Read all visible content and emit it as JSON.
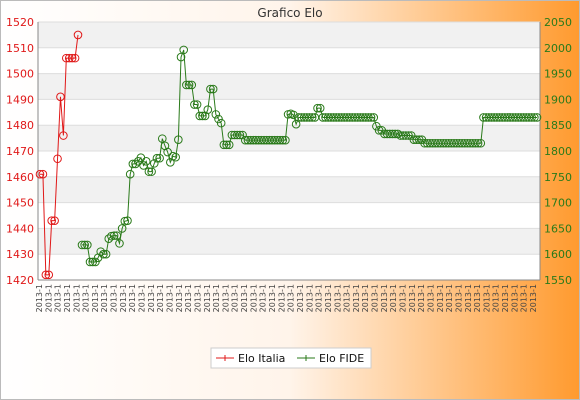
{
  "chart_data": {
    "type": "line",
    "title": "Grafico Elo",
    "colors": {
      "elo_italia": "#e01818",
      "elo_fide": "#2a7a1a"
    },
    "y_left": {
      "ticks": [
        1420,
        1430,
        1440,
        1450,
        1460,
        1470,
        1480,
        1490,
        1500,
        1510,
        1520
      ],
      "range": [
        1420,
        1520
      ]
    },
    "y_right": {
      "ticks": [
        1550,
        1600,
        1650,
        1700,
        1750,
        1800,
        1850,
        1900,
        1950,
        2000,
        2050
      ],
      "range": [
        1550,
        2050
      ]
    },
    "x_tick_label": "2013-1",
    "x_tick_count": 54,
    "legend": {
      "position": "bottom",
      "entries": [
        "Elo Italia",
        "Elo FIDE"
      ]
    },
    "grid": "horizontal",
    "series": [
      {
        "name": "Elo Italia",
        "axis": "left",
        "values": [
          1461,
          1461,
          1422,
          1422,
          1443,
          1443,
          1467,
          1491,
          1476,
          1506,
          1506,
          1506,
          1506,
          1515
        ]
      },
      {
        "name": "Elo FIDE",
        "axis": "right",
        "values": [
          1618,
          1618,
          1618,
          1585,
          1585,
          1585,
          1593,
          1605,
          1600,
          1600,
          1630,
          1635,
          1636,
          1636,
          1621,
          1650,
          1664,
          1665,
          1755,
          1775,
          1775,
          1780,
          1787,
          1772,
          1780,
          1760,
          1760,
          1776,
          1786,
          1786,
          1824,
          1810,
          1798,
          1778,
          1790,
          1788,
          1822,
          1982,
          1996,
          1928,
          1928,
          1928,
          1890,
          1890,
          1868,
          1868,
          1868,
          1880,
          1920,
          1920,
          1871,
          1862,
          1854,
          1812,
          1812,
          1812,
          1831,
          1831,
          1831,
          1831,
          1831,
          1821,
          1821,
          1821,
          1821,
          1821,
          1821,
          1821,
          1821,
          1821,
          1821,
          1821,
          1821,
          1821,
          1821,
          1821,
          1821,
          1871,
          1872,
          1870,
          1852,
          1865,
          1865,
          1865,
          1865,
          1865,
          1865,
          1865,
          1883,
          1883,
          1865,
          1865,
          1865,
          1865,
          1865,
          1865,
          1865,
          1865,
          1865,
          1865,
          1865,
          1865,
          1865,
          1865,
          1865,
          1865,
          1865,
          1865,
          1865,
          1865,
          1848,
          1840,
          1840,
          1833,
          1833,
          1833,
          1833,
          1833,
          1833,
          1830,
          1830,
          1830,
          1830,
          1830,
          1822,
          1822,
          1822,
          1822,
          1815,
          1815,
          1815,
          1815,
          1815,
          1815,
          1815,
          1815,
          1815,
          1815,
          1815,
          1815,
          1815,
          1815,
          1815,
          1815,
          1815,
          1815,
          1815,
          1815,
          1815,
          1815,
          1865,
          1865,
          1865,
          1865,
          1865,
          1865,
          1865,
          1865,
          1865,
          1865,
          1865,
          1865,
          1865,
          1865,
          1865,
          1865,
          1865,
          1865,
          1865,
          1865,
          1865
        ]
      }
    ]
  }
}
